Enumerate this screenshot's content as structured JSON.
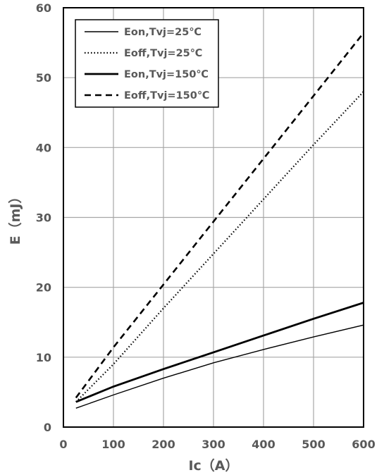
{
  "chart_data": {
    "type": "line",
    "title": "",
    "xlabel": "Ic（A）",
    "ylabel": "E（mJ）",
    "xlim": [
      0,
      600
    ],
    "ylim": [
      0,
      60
    ],
    "xticks": [
      0,
      100,
      200,
      300,
      400,
      500,
      600
    ],
    "yticks": [
      0,
      10,
      20,
      30,
      40,
      50,
      60
    ],
    "grid": true,
    "legend_position": "top-left",
    "series": [
      {
        "name": "Eon,Tvj=25℃",
        "style": "solid-thin",
        "x": [
          25,
          100,
          200,
          300,
          400,
          500,
          600
        ],
        "y": [
          2.7,
          4.6,
          7.0,
          9.2,
          11.1,
          12.9,
          14.6
        ]
      },
      {
        "name": "Eoff,Tvj=25℃",
        "style": "dotted",
        "x": [
          25,
          100,
          200,
          300,
          400,
          500,
          600
        ],
        "y": [
          3.6,
          9.0,
          17.0,
          24.8,
          32.6,
          40.4,
          48.0
        ]
      },
      {
        "name": "Eon,Tvj=150℃",
        "style": "solid-thick",
        "x": [
          25,
          100,
          200,
          300,
          400,
          500,
          600
        ],
        "y": [
          3.6,
          5.8,
          8.3,
          10.7,
          13.1,
          15.5,
          17.8
        ]
      },
      {
        "name": "Eoff,Tvj=150℃",
        "style": "dashed",
        "x": [
          25,
          100,
          200,
          300,
          400,
          500,
          600
        ],
        "y": [
          4.2,
          11.4,
          20.4,
          29.4,
          38.4,
          47.4,
          56.4
        ]
      }
    ]
  }
}
